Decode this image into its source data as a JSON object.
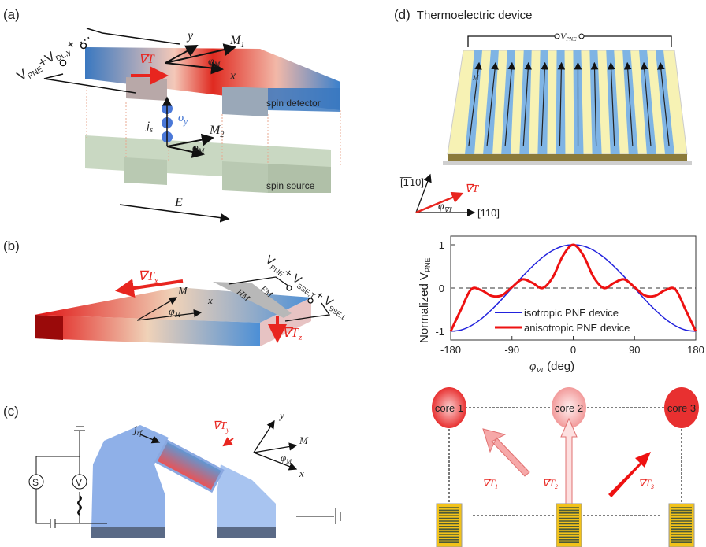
{
  "panels": {
    "a": {
      "label": "(a)",
      "voltage": "V",
      "voltage_sub1": "PNE",
      "voltage_sub2": "DL,y",
      "voltage_plus": "+",
      "voltage_dots": "+ …",
      "grad": "∇T",
      "axis_x": "x",
      "axis_y": "y",
      "m1": "M",
      "m1_sub": "1",
      "m2": "M",
      "m2_sub": "2",
      "phi": "φ",
      "phi_sub": "M",
      "js": "j",
      "js_sub": "s",
      "sigma": "σ",
      "sigma_sub": "y",
      "detector": "spin detector",
      "source": "spin source",
      "field": "E"
    },
    "b": {
      "label": "(b)",
      "grad_x": "∇T",
      "grad_x_sub": "x",
      "grad_z": "∇T",
      "grad_z_sub": "z",
      "m": "M",
      "phi": "φ",
      "phi_sub": "M",
      "axis_x": "x",
      "hm": "HM",
      "fm": "FM",
      "v1": "V",
      "v1_sub": "PNE",
      "v2": "+ V",
      "v2_sub": "SSE,T",
      "v3": "+ V",
      "v3_sub": "SSE,L"
    },
    "c": {
      "label": "(c)",
      "jrf": "j",
      "jrf_sub": "rf",
      "grad": "∇T",
      "grad_sub": "y",
      "axis_y": "y",
      "axis_x": "x",
      "m": "M",
      "phi": "φ",
      "phi_sub": "M",
      "source_symbol": "S",
      "volt_symbol": "V"
    },
    "d": {
      "label": "(d)",
      "title": "Thermoelectric device",
      "vpne": "V",
      "vpne_sub": "PNE",
      "m": "M",
      "dir1": "[̅1̅ 10]",
      "dir1_text": "[110]",
      "dir2": "[110]",
      "grad": "∇T",
      "phi": "φ",
      "phi_sub": "∇T"
    },
    "e": {
      "cores": [
        "core 1",
        "core 2",
        "core 3"
      ],
      "grads": [
        {
          "text": "∇T",
          "sub": "1"
        },
        {
          "text": "∇T",
          "sub": "2"
        },
        {
          "text": "∇T",
          "sub": "3"
        }
      ]
    }
  },
  "colors": {
    "hot": "#e8251f",
    "cold": "#3a7fcf",
    "isotropic": "#2222dd",
    "anisotropic": "#ee1111",
    "source_green": "#c9d8c2"
  },
  "chart_data": {
    "type": "line",
    "xlabel": "φ",
    "xlabel_sub": "∇T",
    "xlabel_unit": "(deg)",
    "ylabel": "Normalized V",
    "ylabel_sub": "PNE",
    "xlim": [
      -180,
      180
    ],
    "ylim": [
      -1.2,
      1.2
    ],
    "xticks": [
      "-180",
      "-90",
      "0",
      "90",
      "180"
    ],
    "yticks": [
      "-1",
      "0",
      "1"
    ],
    "reference_line": 0,
    "legend_position": "bottom-center",
    "x": [
      -180,
      -165,
      -150,
      -135,
      -120,
      -105,
      -90,
      -75,
      -60,
      -45,
      -30,
      -15,
      0,
      15,
      30,
      45,
      60,
      75,
      90,
      105,
      120,
      135,
      150,
      165,
      180
    ],
    "series": [
      {
        "name": "isotropic PNE device",
        "values": [
          -1,
          -0.97,
          -0.87,
          -0.71,
          -0.5,
          -0.26,
          0,
          0.26,
          0.5,
          0.71,
          0.87,
          0.97,
          1,
          0.97,
          0.87,
          0.71,
          0.5,
          0.26,
          0,
          -0.26,
          -0.5,
          -0.71,
          -0.87,
          -0.97,
          -1
        ]
      },
      {
        "name": "anisotropic PNE device",
        "values": [
          -1,
          -0.5,
          -0.03,
          -0.05,
          -0.18,
          -0.17,
          0.02,
          0.2,
          0.12,
          0,
          0.25,
          0.75,
          1,
          0.75,
          0.25,
          0,
          0.12,
          0.2,
          0.02,
          -0.17,
          -0.18,
          -0.05,
          -0.03,
          -0.5,
          -1
        ]
      }
    ]
  }
}
